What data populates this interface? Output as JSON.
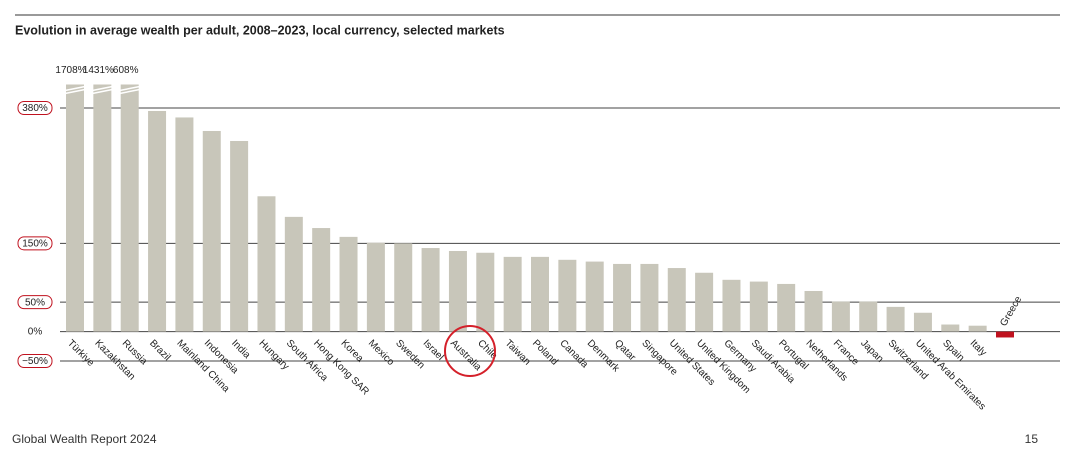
{
  "chart_data": {
    "type": "bar",
    "title": "Evolution in average wealth per adult, 2008–2023, local currency, selected markets",
    "categories": [
      "Türkiye",
      "Kazakhstan",
      "Russia",
      "Brazil",
      "Mainland China",
      "Indonesia",
      "India",
      "Hungary",
      "South Africa",
      "Hong Kong SAR",
      "Korea",
      "Mexico",
      "Sweden",
      "Israel",
      "Australia",
      "Chile",
      "Taiwan",
      "Poland",
      "Canada",
      "Denmark",
      "Qatar",
      "Singapore",
      "United States",
      "United Kingdom",
      "Germany",
      "Saudi Arabia",
      "Portugal",
      "Netherlands",
      "France",
      "Japan",
      "Switzerland",
      "United Arab Emirates",
      "Spain",
      "Italy",
      "Greece"
    ],
    "values": [
      1708,
      1431,
      608,
      375,
      364,
      341,
      324,
      230,
      195,
      176,
      161,
      151,
      150,
      142,
      137,
      134,
      127,
      127,
      122,
      119,
      115,
      115,
      108,
      100,
      88,
      85,
      81,
      69,
      51,
      51,
      42,
      32,
      12,
      10,
      -10
    ],
    "value_labels": [
      "1708%",
      "1431%",
      "608%",
      null,
      null,
      null,
      null,
      null,
      null,
      null,
      null,
      null,
      null,
      null,
      null,
      null,
      null,
      null,
      null,
      null,
      null,
      null,
      null,
      null,
      null,
      null,
      null,
      null,
      null,
      null,
      null,
      null,
      null,
      null,
      null
    ],
    "color": "#c8c6ba",
    "negative_color": "#c0121f",
    "ylim": [
      -50,
      420
    ],
    "yticks": [
      {
        "value": -50,
        "label": "−50%"
      },
      {
        "value": 0,
        "label": "0%"
      },
      {
        "value": 50,
        "label": "50%"
      },
      {
        "value": 150,
        "label": "150%"
      },
      {
        "value": 380,
        "label": "380%"
      }
    ],
    "grid": true
  },
  "footer": {
    "report": "Global Wealth Report 2024",
    "page": "15"
  }
}
